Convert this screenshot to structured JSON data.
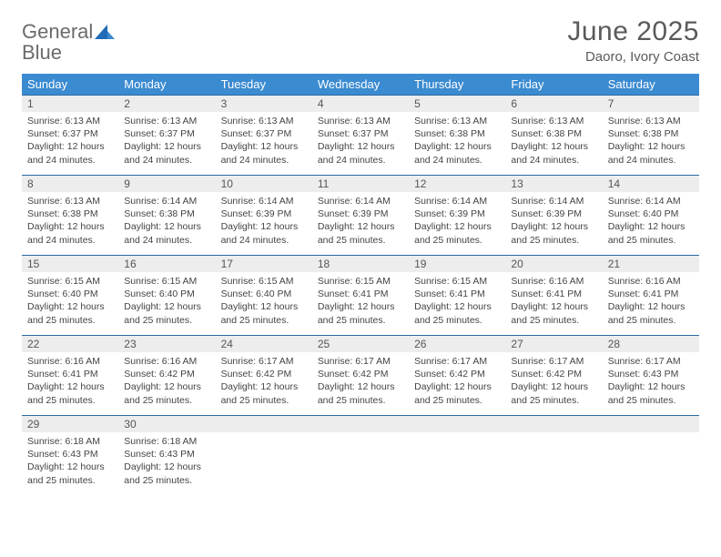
{
  "logo": {
    "line1": "General",
    "line2": "Blue"
  },
  "title": "June 2025",
  "location": "Daoro, Ivory Coast",
  "colors": {
    "header_bg": "#3b8bd1",
    "header_text": "#ffffff",
    "daynum_bg": "#ededed",
    "row_border": "#2b6aa3",
    "body_text": "#444444",
    "title_text": "#5a5a5a",
    "logo_gray": "#6b6b6b",
    "logo_blue": "#2f7cc4"
  },
  "weekdays": [
    "Sunday",
    "Monday",
    "Tuesday",
    "Wednesday",
    "Thursday",
    "Friday",
    "Saturday"
  ],
  "weeks": [
    [
      {
        "n": "1",
        "sr": "6:13 AM",
        "ss": "6:37 PM",
        "dl": "12 hours and 24 minutes."
      },
      {
        "n": "2",
        "sr": "6:13 AM",
        "ss": "6:37 PM",
        "dl": "12 hours and 24 minutes."
      },
      {
        "n": "3",
        "sr": "6:13 AM",
        "ss": "6:37 PM",
        "dl": "12 hours and 24 minutes."
      },
      {
        "n": "4",
        "sr": "6:13 AM",
        "ss": "6:37 PM",
        "dl": "12 hours and 24 minutes."
      },
      {
        "n": "5",
        "sr": "6:13 AM",
        "ss": "6:38 PM",
        "dl": "12 hours and 24 minutes."
      },
      {
        "n": "6",
        "sr": "6:13 AM",
        "ss": "6:38 PM",
        "dl": "12 hours and 24 minutes."
      },
      {
        "n": "7",
        "sr": "6:13 AM",
        "ss": "6:38 PM",
        "dl": "12 hours and 24 minutes."
      }
    ],
    [
      {
        "n": "8",
        "sr": "6:13 AM",
        "ss": "6:38 PM",
        "dl": "12 hours and 24 minutes."
      },
      {
        "n": "9",
        "sr": "6:14 AM",
        "ss": "6:38 PM",
        "dl": "12 hours and 24 minutes."
      },
      {
        "n": "10",
        "sr": "6:14 AM",
        "ss": "6:39 PM",
        "dl": "12 hours and 24 minutes."
      },
      {
        "n": "11",
        "sr": "6:14 AM",
        "ss": "6:39 PM",
        "dl": "12 hours and 25 minutes."
      },
      {
        "n": "12",
        "sr": "6:14 AM",
        "ss": "6:39 PM",
        "dl": "12 hours and 25 minutes."
      },
      {
        "n": "13",
        "sr": "6:14 AM",
        "ss": "6:39 PM",
        "dl": "12 hours and 25 minutes."
      },
      {
        "n": "14",
        "sr": "6:14 AM",
        "ss": "6:40 PM",
        "dl": "12 hours and 25 minutes."
      }
    ],
    [
      {
        "n": "15",
        "sr": "6:15 AM",
        "ss": "6:40 PM",
        "dl": "12 hours and 25 minutes."
      },
      {
        "n": "16",
        "sr": "6:15 AM",
        "ss": "6:40 PM",
        "dl": "12 hours and 25 minutes."
      },
      {
        "n": "17",
        "sr": "6:15 AM",
        "ss": "6:40 PM",
        "dl": "12 hours and 25 minutes."
      },
      {
        "n": "18",
        "sr": "6:15 AM",
        "ss": "6:41 PM",
        "dl": "12 hours and 25 minutes."
      },
      {
        "n": "19",
        "sr": "6:15 AM",
        "ss": "6:41 PM",
        "dl": "12 hours and 25 minutes."
      },
      {
        "n": "20",
        "sr": "6:16 AM",
        "ss": "6:41 PM",
        "dl": "12 hours and 25 minutes."
      },
      {
        "n": "21",
        "sr": "6:16 AM",
        "ss": "6:41 PM",
        "dl": "12 hours and 25 minutes."
      }
    ],
    [
      {
        "n": "22",
        "sr": "6:16 AM",
        "ss": "6:41 PM",
        "dl": "12 hours and 25 minutes."
      },
      {
        "n": "23",
        "sr": "6:16 AM",
        "ss": "6:42 PM",
        "dl": "12 hours and 25 minutes."
      },
      {
        "n": "24",
        "sr": "6:17 AM",
        "ss": "6:42 PM",
        "dl": "12 hours and 25 minutes."
      },
      {
        "n": "25",
        "sr": "6:17 AM",
        "ss": "6:42 PM",
        "dl": "12 hours and 25 minutes."
      },
      {
        "n": "26",
        "sr": "6:17 AM",
        "ss": "6:42 PM",
        "dl": "12 hours and 25 minutes."
      },
      {
        "n": "27",
        "sr": "6:17 AM",
        "ss": "6:42 PM",
        "dl": "12 hours and 25 minutes."
      },
      {
        "n": "28",
        "sr": "6:17 AM",
        "ss": "6:43 PM",
        "dl": "12 hours and 25 minutes."
      }
    ],
    [
      {
        "n": "29",
        "sr": "6:18 AM",
        "ss": "6:43 PM",
        "dl": "12 hours and 25 minutes."
      },
      {
        "n": "30",
        "sr": "6:18 AM",
        "ss": "6:43 PM",
        "dl": "12 hours and 25 minutes."
      },
      null,
      null,
      null,
      null,
      null
    ]
  ],
  "labels": {
    "sunrise": "Sunrise:",
    "sunset": "Sunset:",
    "daylight": "Daylight:"
  }
}
